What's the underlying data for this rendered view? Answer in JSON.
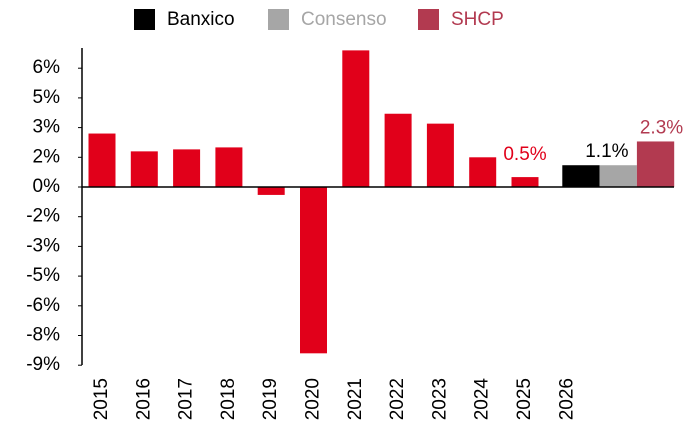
{
  "chart_data": {
    "type": "bar",
    "categories": [
      "2015",
      "2016",
      "2017",
      "2018",
      "2019",
      "2020",
      "2021",
      "2022",
      "2023",
      "2024",
      "2025",
      "2026"
    ],
    "values": [
      2.7,
      1.8,
      1.9,
      2.0,
      -0.4,
      -8.4,
      6.9,
      3.7,
      3.2,
      1.5,
      0.5,
      null
    ],
    "value_labels": [
      null,
      null,
      null,
      null,
      null,
      null,
      null,
      null,
      null,
      null,
      "0.5%",
      null
    ],
    "color": "#e1001a",
    "series": [
      {
        "name": "Banxico",
        "color": "#000000",
        "values": [
          null,
          null,
          null,
          null,
          null,
          null,
          null,
          null,
          null,
          null,
          null,
          1.1
        ],
        "value_labels": [
          null,
          null,
          null,
          null,
          null,
          null,
          null,
          null,
          null,
          null,
          null,
          "1.1%"
        ]
      },
      {
        "name": "Consenso",
        "color": "#a6a6a6",
        "values": [
          null,
          null,
          null,
          null,
          null,
          null,
          null,
          null,
          null,
          null,
          null,
          1.1
        ]
      },
      {
        "name": "SHCP",
        "color": "#b23a50",
        "values": [
          null,
          null,
          null,
          null,
          null,
          null,
          null,
          null,
          null,
          null,
          null,
          2.3
        ],
        "value_labels": [
          null,
          null,
          null,
          null,
          null,
          null,
          null,
          null,
          null,
          null,
          null,
          "2.3%"
        ]
      }
    ],
    "ylim": [
      -9,
      7
    ],
    "yticks": [
      {
        "value": 6,
        "label": "6%"
      },
      {
        "value": 4.5,
        "label": "5%"
      },
      {
        "value": 3,
        "label": "3%"
      },
      {
        "value": 1.5,
        "label": "2%"
      },
      {
        "value": 0,
        "label": "0%"
      },
      {
        "value": -1.5,
        "label": "-2%"
      },
      {
        "value": -3,
        "label": "-3%"
      },
      {
        "value": -4.5,
        "label": "-5%"
      },
      {
        "value": -6,
        "label": "-6%"
      },
      {
        "value": -7.5,
        "label": "-8%"
      },
      {
        "value": -9,
        "label": "-9%"
      }
    ],
    "grid": false
  }
}
